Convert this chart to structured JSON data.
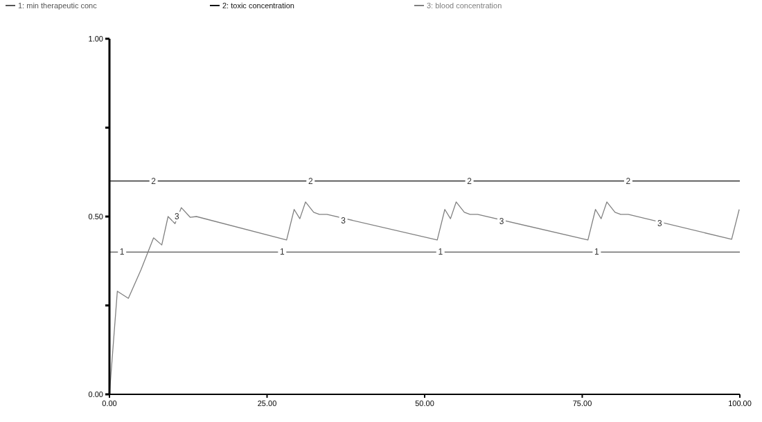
{
  "chart_data": {
    "type": "line",
    "x": [
      0,
      100
    ],
    "series": [
      {
        "name": "1: min therapeutic conc",
        "color": "#555555",
        "values": [
          0.4,
          0.4
        ]
      },
      {
        "name": "2: toxic concentration",
        "color": "#111111",
        "values": [
          0.6,
          0.6
        ]
      },
      {
        "name": "3: blood concentration",
        "color": "#808080",
        "x": [
          0,
          1.25,
          3,
          5,
          7,
          8.3,
          9.3,
          10.4,
          11.4,
          12.8,
          13.8,
          28.1,
          29.3,
          30.2,
          31.1,
          32.4,
          33.3,
          34.5,
          52.0,
          53.2,
          54.1,
          55.0,
          56.3,
          57.2,
          58.4,
          75.9,
          77.1,
          78.0,
          78.9,
          80.2,
          81.1,
          82.3,
          98.7,
          99.9
        ],
        "values": [
          0,
          0.29,
          0.27,
          0.35,
          0.44,
          0.42,
          0.5,
          0.48,
          0.525,
          0.498,
          0.5,
          0.434,
          0.52,
          0.494,
          0.541,
          0.512,
          0.506,
          0.506,
          0.434,
          0.52,
          0.494,
          0.541,
          0.512,
          0.506,
          0.506,
          0.434,
          0.52,
          0.494,
          0.541,
          0.512,
          0.506,
          0.506,
          0.436,
          0.52
        ]
      }
    ],
    "xlim": [
      0,
      100
    ],
    "ylim": [
      0,
      1
    ],
    "xticks": [
      {
        "value": 0,
        "label": "0.00"
      },
      {
        "value": 25,
        "label": "25.00"
      },
      {
        "value": 50,
        "label": "50.00"
      },
      {
        "value": 75,
        "label": "75.00"
      },
      {
        "value": 100,
        "label": "100.00"
      }
    ],
    "yticks": [
      {
        "value": 0,
        "label": "0.00"
      },
      {
        "value": 0.25,
        "label": null
      },
      {
        "value": 0.5,
        "label": "0.50"
      },
      {
        "value": 0.75,
        "label": null
      },
      {
        "value": 1,
        "label": "1.00"
      }
    ],
    "legend": "top",
    "grid": false,
    "marker": "none",
    "line_style": "solid",
    "annotations": [
      {
        "text": "1",
        "x": 2.0,
        "y": 0.4
      },
      {
        "text": "1",
        "x": 27.4,
        "y": 0.4
      },
      {
        "text": "1",
        "x": 52.5,
        "y": 0.4
      },
      {
        "text": "1",
        "x": 77.3,
        "y": 0.4
      },
      {
        "text": "2",
        "x": 7.0,
        "y": 0.6
      },
      {
        "text": "2",
        "x": 31.9,
        "y": 0.6
      },
      {
        "text": "2",
        "x": 57.1,
        "y": 0.6
      },
      {
        "text": "2",
        "x": 82.3,
        "y": 0.6
      },
      {
        "text": "3",
        "x": 10.7,
        "y": 0.5
      },
      {
        "text": "3",
        "x": 37.1,
        "y": 0.488
      },
      {
        "text": "3",
        "x": 62.2,
        "y": 0.486
      },
      {
        "text": "3",
        "x": 87.3,
        "y": 0.48
      }
    ]
  }
}
